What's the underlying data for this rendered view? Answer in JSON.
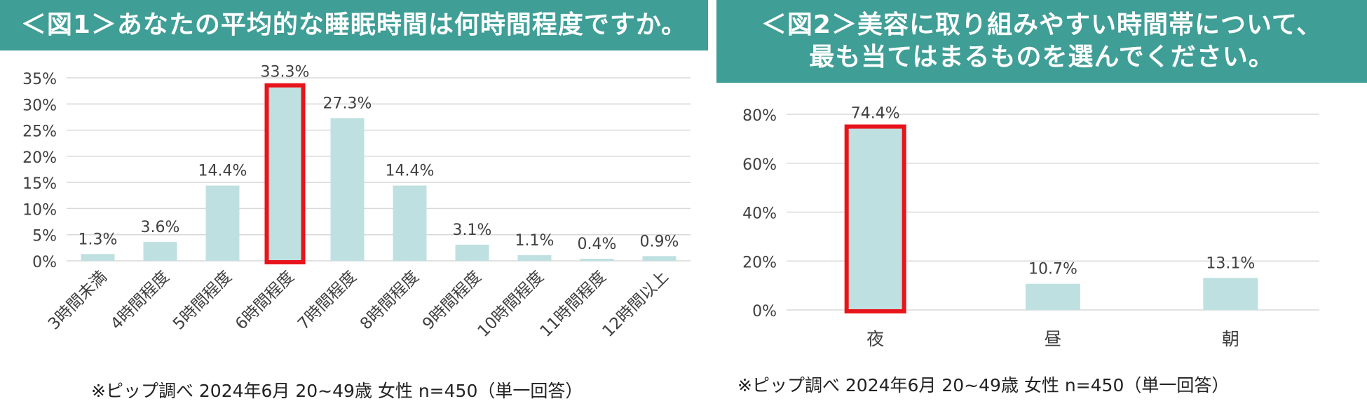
{
  "colors": {
    "banner": "#3f9e96",
    "bar": "#bfe0e1",
    "highlight": "#e8141b",
    "grid": "#d9d9d9",
    "text": "#404040"
  },
  "chart_data": [
    {
      "type": "bar",
      "title": "＜図1＞あなたの平均的な睡眠時間は何時間程度ですか。",
      "categories": [
        "3時間未満",
        "4時間程度",
        "5時間程度",
        "6時間程度",
        "7時間程度",
        "8時間程度",
        "9時間程度",
        "10時間程度",
        "11時間程度",
        "12時間以上"
      ],
      "values": [
        1.3,
        3.6,
        14.4,
        33.3,
        27.3,
        14.4,
        3.1,
        1.1,
        0.4,
        0.9
      ],
      "data_labels": [
        "1.3%",
        "3.6%",
        "14.4%",
        "33.3%",
        "27.3%",
        "14.4%",
        "3.1%",
        "1.1%",
        "0.4%",
        "0.9%"
      ],
      "ylim": [
        0,
        35
      ],
      "yticks": [
        "0%",
        "5%",
        "10%",
        "15%",
        "20%",
        "25%",
        "30%",
        "35%"
      ],
      "highlight_index": 3,
      "grid": true,
      "source": "※ピップ調べ 2024年6月 20~49歳 女性 n=450（単一回答）"
    },
    {
      "type": "bar",
      "title_lines": [
        "＜図2＞美容に取り組みやすい時間帯について、",
        "最も当てはまるものを選んでください。"
      ],
      "categories": [
        "夜",
        "昼",
        "朝"
      ],
      "values": [
        74.4,
        10.7,
        13.1
      ],
      "data_labels": [
        "74.4%",
        "10.7%",
        "13.1%"
      ],
      "ylim": [
        0,
        80
      ],
      "yticks": [
        "0%",
        "20%",
        "40%",
        "60%",
        "80%"
      ],
      "highlight_index": 0,
      "grid": true,
      "source": "※ピップ調べ 2024年6月 20~49歳 女性 n=450（単一回答）"
    }
  ]
}
